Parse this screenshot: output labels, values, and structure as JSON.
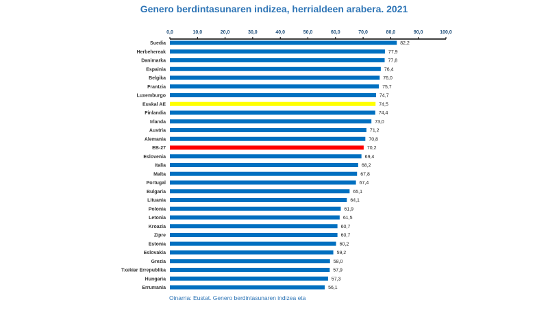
{
  "chart_data": {
    "type": "bar",
    "orientation": "horizontal",
    "title": "Genero berdintasunaren indizea, herrialdeen arabera. 2021",
    "categories": [
      "Suedia",
      "Herbehereak",
      "Danimarka",
      "Espainia",
      "Belgika",
      "Frantzia",
      "Luxemburgo",
      "Euskal AE",
      "Finlandia",
      "Irlanda",
      "Austria",
      "Alemania",
      "EB-27",
      "Eslovenia",
      "Italia",
      "Malta",
      "Portugal",
      "Bulgaria",
      "Lituania",
      "Polonia",
      "Letonia",
      "Kroazia",
      "Zipre",
      "Estonia",
      "Eslovakia",
      "Grezia",
      "Txekiar Errepublika",
      "Hungaria",
      "Errumania"
    ],
    "values": [
      82.2,
      77.9,
      77.8,
      76.4,
      76.0,
      75.7,
      74.7,
      74.5,
      74.4,
      73.0,
      71.2,
      70.8,
      70.2,
      69.4,
      68.2,
      67.8,
      67.4,
      65.1,
      64.1,
      61.9,
      61.5,
      60.7,
      60.7,
      60.2,
      59.2,
      58.0,
      57.9,
      57.3,
      56.1
    ],
    "value_labels": [
      "82,2",
      "77,9",
      "77,8",
      "76,4",
      "76,0",
      "75,7",
      "74,7",
      "74,5",
      "74,4",
      "73,0",
      "71,2",
      "70,8",
      "70,2",
      "69,4",
      "68,2",
      "67,8",
      "67,4",
      "65,1",
      "64,1",
      "61,9",
      "61,5",
      "60,7",
      "60,7",
      "60,2",
      "59,2",
      "58,0",
      "57,9",
      "57,3",
      "56,1"
    ],
    "xlim": [
      0,
      100
    ],
    "x_ticks": [
      0,
      10,
      20,
      30,
      40,
      50,
      60,
      70,
      80,
      90,
      100
    ],
    "x_tick_labels": [
      "0,0",
      "10,0",
      "20,0",
      "30,0",
      "40,0",
      "50,0",
      "60,0",
      "70,0",
      "80,0",
      "90,0",
      "100,0"
    ],
    "axis_position": "top",
    "grid": false,
    "xlabel": "",
    "ylabel": "",
    "colors": {
      "default": "#0070c0",
      "highlights": {
        "Euskal AE": "#ffff00",
        "EB-27": "#ff0000"
      },
      "title": "#2e75b6"
    }
  },
  "source": "Oinarria: Eustat. Genero berdintasunaren indizea eta"
}
